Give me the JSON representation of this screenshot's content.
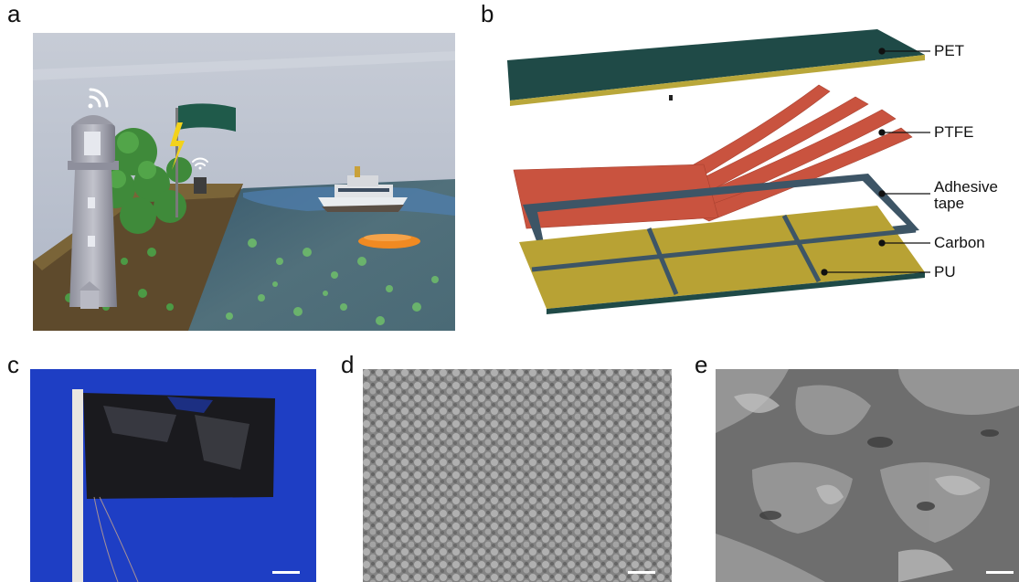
{
  "panels": {
    "a": {
      "letter": "a"
    },
    "b": {
      "letter": "b",
      "layers": {
        "pet": "PET",
        "ptfe": "PTFE",
        "adhesive_line1": "Adhesive",
        "adhesive_line2": "tape",
        "carbon": "Carbon",
        "pu": "PU"
      }
    },
    "c": {
      "letter": "c"
    },
    "d": {
      "letter": "d"
    },
    "e": {
      "letter": "e"
    }
  },
  "colors": {
    "pet": "#1f4a47",
    "ptfe": "#c9533f",
    "adhesive": "#3d5566",
    "carbon": "#b8a234",
    "photo_bg": "#1f3fc7"
  },
  "icons": [
    "wifi-signal-icon",
    "lightning-bolt-icon",
    "scale-bar-icon"
  ]
}
